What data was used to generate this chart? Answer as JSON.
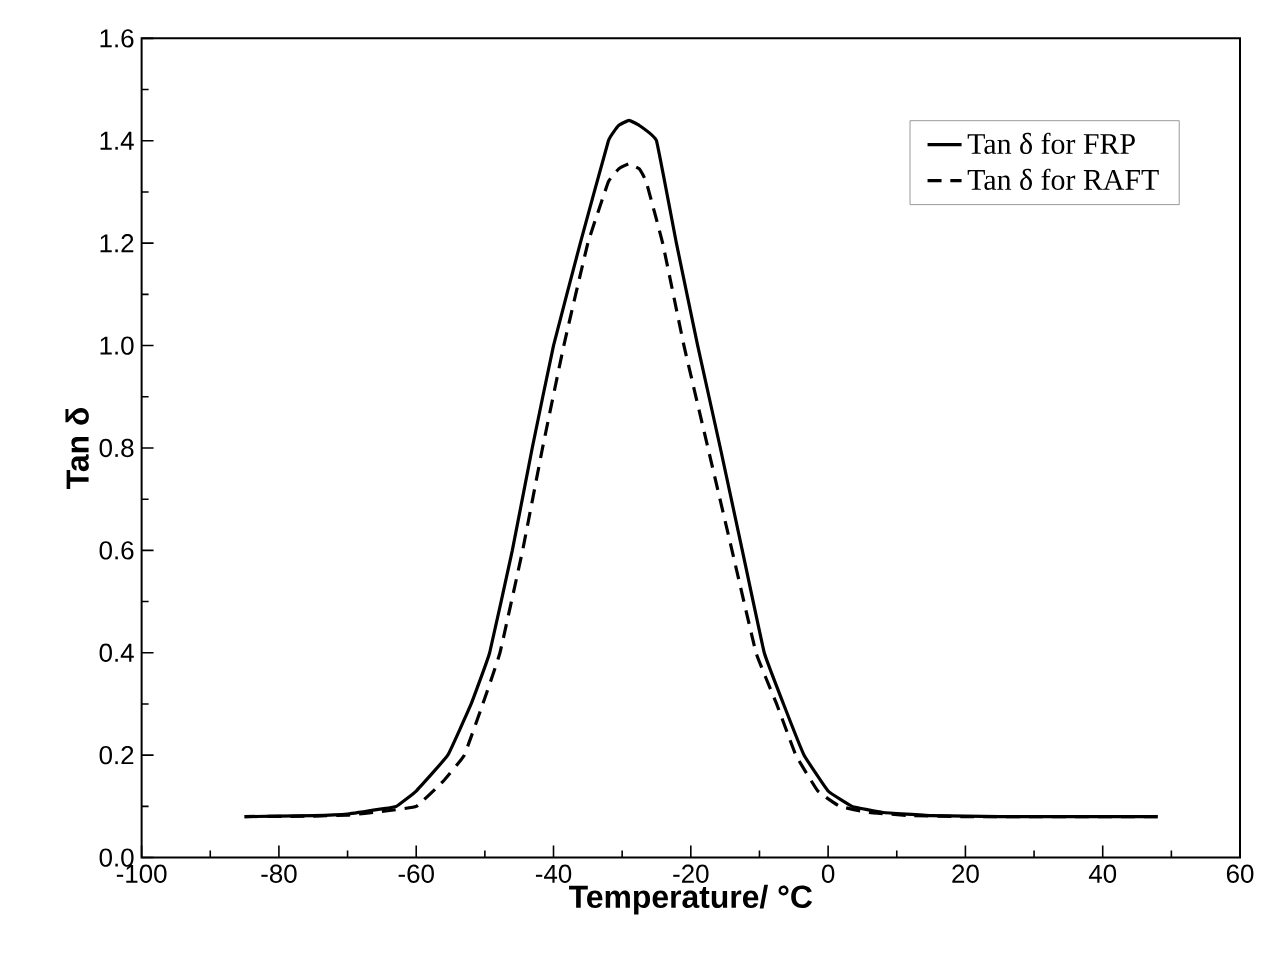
{
  "chart_data": {
    "type": "line",
    "xlabel": "Temperature/ °C",
    "ylabel": "Tan δ",
    "xlim": [
      -100,
      60
    ],
    "xticks": [
      -100,
      -80,
      -60,
      -40,
      -20,
      0,
      20,
      40,
      60
    ],
    "ylim": [
      0,
      1.6
    ],
    "yticks": [
      {
        "value": 0,
        "label": "0.0"
      },
      0.2,
      0.4,
      0.6,
      0.8,
      {
        "value": 1,
        "label": "1.0"
      },
      1.2,
      1.4,
      1.6
    ],
    "grid": false,
    "legend": "top right",
    "series": [
      {
        "name": "Tan δ for FRP",
        "color": "#000000",
        "line_style": "solid",
        "x": [
          -85,
          -75,
          -70,
          -65,
          -62.9,
          -60,
          -55.4,
          -52,
          -49.3,
          -46,
          -43.1,
          -40,
          -36.1,
          -32,
          -30.5,
          -29,
          -27.5,
          -25,
          -22.1,
          -19,
          -15.7,
          -12.5,
          -9.3,
          -6.5,
          -3.5,
          0,
          3.5,
          8,
          15,
          25,
          48
        ],
        "values": [
          0.08,
          0.082,
          0.085,
          0.095,
          0.1,
          0.13,
          0.2,
          0.3,
          0.4,
          0.6,
          0.8,
          1.0,
          1.2,
          1.4,
          1.43,
          1.44,
          1.43,
          1.4,
          1.2,
          1.0,
          0.8,
          0.6,
          0.4,
          0.3,
          0.2,
          0.13,
          0.1,
          0.088,
          0.082,
          0.08,
          0.08
        ]
      },
      {
        "name": "Tan δ for RAFT",
        "color": "#000000",
        "line_style": "dashed",
        "x": [
          -85,
          -75,
          -70,
          -65,
          -60,
          -56,
          -53,
          -50.3,
          -47.8,
          -44.5,
          -41.6,
          -38.5,
          -35,
          -32,
          -30.5,
          -29,
          -27.5,
          -26.5,
          -24.1,
          -21,
          -17.5,
          -14,
          -10.5,
          -7.5,
          -4.7,
          -1.5,
          1.7,
          6,
          12,
          20,
          48
        ],
        "values": [
          0.08,
          0.081,
          0.083,
          0.09,
          0.1,
          0.15,
          0.2,
          0.3,
          0.4,
          0.6,
          0.8,
          1.0,
          1.2,
          1.32,
          1.345,
          1.355,
          1.345,
          1.32,
          1.2,
          1.0,
          0.8,
          0.6,
          0.4,
          0.3,
          0.2,
          0.13,
          0.1,
          0.088,
          0.082,
          0.08,
          0.08
        ]
      }
    ]
  }
}
